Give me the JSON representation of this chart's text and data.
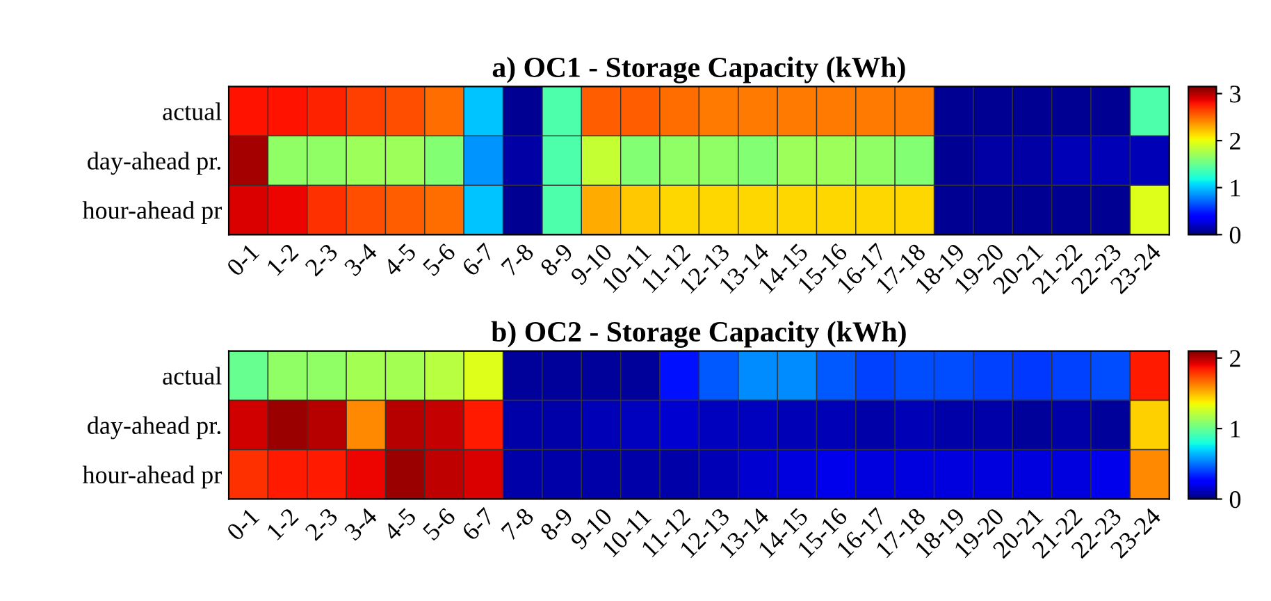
{
  "chart_data": [
    {
      "type": "heatmap",
      "title": "a) OC1 - Storage Capacity (kWh)",
      "categories": [
        "0-1",
        "1-2",
        "2-3",
        "3-4",
        "4-5",
        "5-6",
        "6-7",
        "7-8",
        "8-9",
        "9-10",
        "10-11",
        "11-12",
        "12-13",
        "13-14",
        "14-15",
        "15-16",
        "16-17",
        "17-18",
        "18-19",
        "19-20",
        "20-21",
        "21-22",
        "22-23",
        "23-24"
      ],
      "y_categories": [
        "actual",
        "day-ahead pr.",
        "hour-ahead pr"
      ],
      "cells": [
        [
          2.8,
          2.8,
          2.75,
          2.65,
          2.6,
          2.5,
          1.0,
          0.05,
          1.4,
          2.55,
          2.55,
          2.5,
          2.45,
          2.45,
          2.45,
          2.45,
          2.45,
          2.45,
          0.05,
          0.05,
          0.05,
          0.05,
          0.05,
          1.4
        ],
        [
          3.05,
          1.65,
          1.65,
          1.7,
          1.7,
          1.6,
          0.85,
          0.1,
          1.4,
          1.85,
          1.6,
          1.65,
          1.65,
          1.6,
          1.7,
          1.7,
          1.65,
          1.6,
          0.05,
          0.1,
          0.1,
          0.15,
          0.15,
          0.15
        ],
        [
          2.9,
          2.85,
          2.7,
          2.6,
          2.55,
          2.5,
          1.0,
          0.05,
          1.4,
          2.3,
          2.2,
          2.15,
          2.15,
          2.15,
          2.15,
          2.15,
          2.15,
          2.15,
          0.05,
          0.05,
          0.05,
          0.05,
          0.05,
          1.95
        ]
      ],
      "clim": [
        0,
        3.15
      ],
      "cticks": [
        0,
        1,
        2,
        3
      ]
    },
    {
      "type": "heatmap",
      "title": "b) OC2 - Storage Capacity (kWh)",
      "categories": [
        "0-1",
        "1-2",
        "2-3",
        "3-4",
        "4-5",
        "5-6",
        "6-7",
        "7-8",
        "8-9",
        "9-10",
        "10-11",
        "11-12",
        "12-13",
        "13-14",
        "14-15",
        "15-16",
        "16-17",
        "17-18",
        "18-19",
        "19-20",
        "20-21",
        "21-22",
        "22-23",
        "23-24"
      ],
      "y_categories": [
        "actual",
        "day-ahead pr.",
        "hour-ahead pr"
      ],
      "cells": [
        [
          1.0,
          1.1,
          1.1,
          1.15,
          1.15,
          1.2,
          1.3,
          0.05,
          0.05,
          0.05,
          0.05,
          0.3,
          0.45,
          0.55,
          0.55,
          0.45,
          0.4,
          0.42,
          0.42,
          0.4,
          0.38,
          0.4,
          0.42,
          1.85
        ],
        [
          1.95,
          2.05,
          2.0,
          1.6,
          2.0,
          1.97,
          1.85,
          0.08,
          0.08,
          0.1,
          0.12,
          0.15,
          0.12,
          0.12,
          0.1,
          0.1,
          0.08,
          0.1,
          0.08,
          0.08,
          0.05,
          0.08,
          0.05,
          1.45
        ],
        [
          1.8,
          1.85,
          1.85,
          1.9,
          2.05,
          1.98,
          1.93,
          0.08,
          0.08,
          0.08,
          0.08,
          0.08,
          0.1,
          0.15,
          0.18,
          0.2,
          0.18,
          0.18,
          0.18,
          0.18,
          0.18,
          0.18,
          0.2,
          1.6
        ]
      ],
      "clim": [
        0,
        2.1
      ],
      "cticks": [
        0,
        1,
        2
      ]
    }
  ]
}
